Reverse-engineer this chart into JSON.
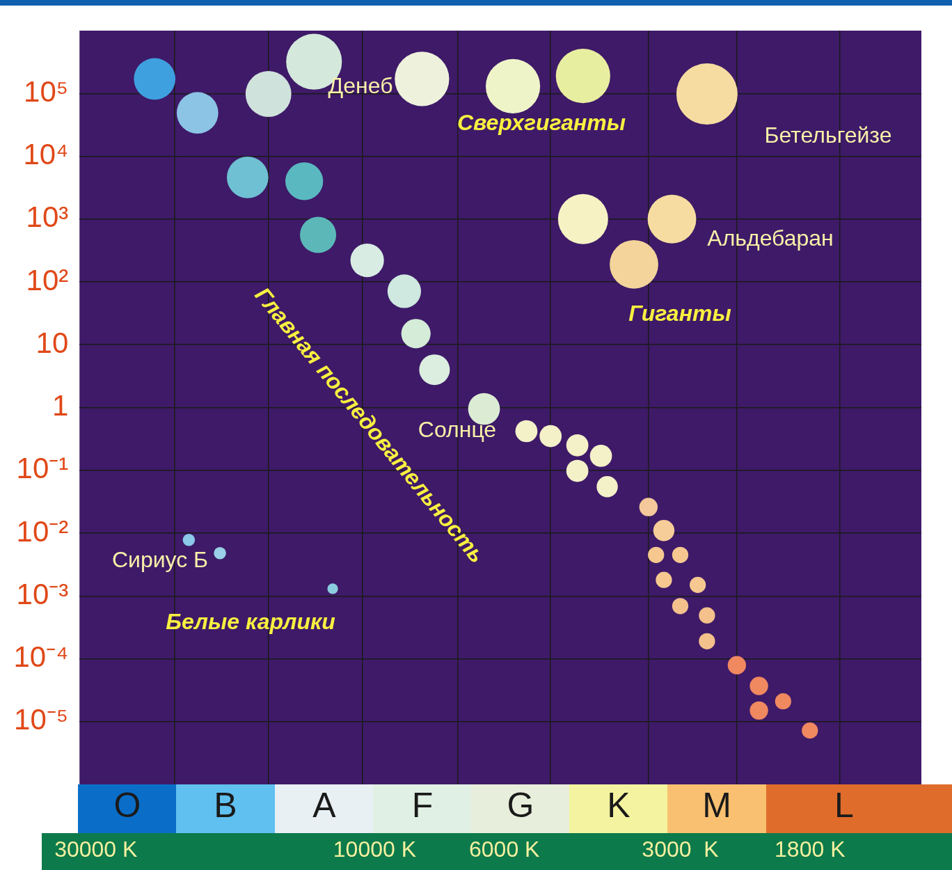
{
  "chart_data": {
    "type": "bubble",
    "x": [
      23800,
      20100,
      12700,
      15200,
      8300,
      5800,
      4400,
      2700,
      16500,
      13200,
      12500,
      10300,
      8900,
      8500,
      7900,
      6500,
      5500,
      5000,
      4500,
      4100,
      4500,
      4000,
      4400,
      3100,
      3600,
      3400,
      3200,
      3300,
      3000,
      3200,
      2800,
      3000,
      2700,
      2700,
      2400,
      2200,
      2200,
      2000,
      1800,
      20800,
      18400,
      11800
    ],
    "values": [
      170000,
      49000,
      320000,
      98000,
      170000,
      130000,
      190000,
      98000,
      4600,
      4000,
      560,
      220,
      71,
      15,
      4,
      0.95,
      0.42,
      0.35,
      0.25,
      0.17,
      0.098,
      0.055,
      1000,
      1000,
      190,
      0.026,
      0.011,
      0.0045,
      0.0045,
      0.0018,
      0.0015,
      0.00069,
      0.00049,
      0.00019,
      7.9e-05,
      3.7e-05,
      1.5e-05,
      2.1e-05,
      7.2e-06,
      0.0078,
      0.0048,
      0.0013
    ],
    "sizes": [
      0.46,
      0.46,
      0.83,
      0.56,
      0.79,
      0.79,
      0.79,
      1,
      0.46,
      0.38,
      0.35,
      0.3,
      0.3,
      0.23,
      0.25,
      0.27,
      0.13,
      0.13,
      0.13,
      0.13,
      0.13,
      0.12,
      0.67,
      0.63,
      0.63,
      0.09,
      0.12,
      0.07,
      0.07,
      0.07,
      0.07,
      0.07,
      0.07,
      0.07,
      0.09,
      0.09,
      0.09,
      0.07,
      0.07,
      0.04,
      0.04,
      0.03
    ],
    "colors": [
      "#3fa0e0",
      "#8cc4e6",
      "#d4e8dc",
      "#d0e2dc",
      "#eef2dc",
      "#eef4c8",
      "#e8eea0",
      "#f6dca0",
      "#6ec0d2",
      "#5ab8c0",
      "#5cb8b8",
      "#d8ece4",
      "#cfe8e0",
      "#d4ecd8",
      "#dceee0",
      "#dcecd4",
      "#f4f0c8",
      "#f4f0c8",
      "#f4f0c8",
      "#f4f0c8",
      "#f4f0c8",
      "#f4f0c8",
      "#f6f2c4",
      "#f6dca0",
      "#f4d49a",
      "#f4c89a",
      "#f6cc98",
      "#f6c890",
      "#f6c890",
      "#f6c890",
      "#f6c890",
      "#f4c08c",
      "#f4c08c",
      "#f4c08c",
      "#f08860",
      "#f08860",
      "#f08860",
      "#f08860",
      "#f08860",
      "#8cc8e8",
      "#9ad0e8",
      "#8ccce0"
    ],
    "log": "xy",
    "xlim": [
      32000,
      1160
    ],
    "ylim": [
      1e-06,
      1000000
    ],
    "xticks": [
      {
        "value": 30000,
        "label": "30000 K"
      },
      {
        "value": 22000,
        "label": null
      },
      {
        "value": 15200,
        "label": null
      },
      {
        "value": 10500,
        "label": null
      },
      {
        "value": 10000,
        "label": "10000 K"
      },
      {
        "value": 7200,
        "label": null
      },
      {
        "value": 6000,
        "label": "6000 K"
      },
      {
        "value": 5000,
        "label": null
      },
      {
        "value": 3400,
        "label": null
      },
      {
        "value": 3000,
        "label": "3000  K"
      },
      {
        "value": 2400,
        "label": null
      },
      {
        "value": 1800,
        "label": "1800 K"
      },
      {
        "value": 1600,
        "label": null
      }
    ],
    "yticks": [
      {
        "value": 1e-05,
        "label": "10⁻⁵"
      },
      {
        "value": 0.0001,
        "label": "10⁻⁴"
      },
      {
        "value": 0.001,
        "label": "10⁻³"
      },
      {
        "value": 0.01,
        "label": "10⁻²"
      },
      {
        "value": 0.1,
        "label": "10⁻¹"
      },
      {
        "value": 1,
        "label": "1"
      },
      {
        "value": 10,
        "label": "10"
      },
      {
        "value": 100,
        "label": "10²"
      },
      {
        "value": 1000,
        "label": "10³"
      },
      {
        "value": 10000,
        "label": "10⁴"
      },
      {
        "value": 100000,
        "label": "10⁵"
      }
    ],
    "annotations": [
      "Денеб",
      "Сверхгиганты",
      "Бетельгейзе",
      "Альдебаран",
      "Гиганты",
      "Солнце",
      "Главная последовательность",
      "Сириус Б",
      "Белые карлики",
      "O",
      "B",
      "A",
      "F",
      "G",
      "K",
      "M",
      "L"
    ],
    "grid": true,
    "legend": false,
    "marker": "circle"
  }
}
